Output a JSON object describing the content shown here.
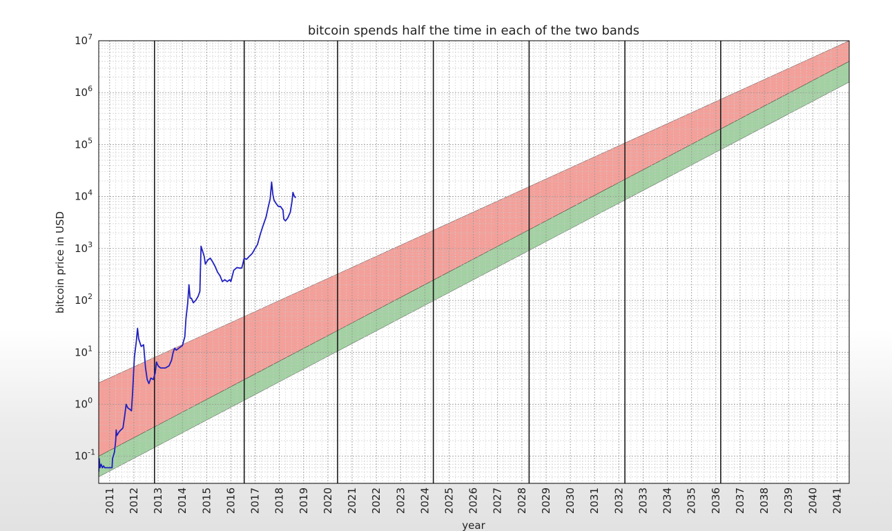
{
  "chart_data": {
    "type": "line",
    "title": "bitcoin spends half the time in each of the two bands",
    "xlabel": "year",
    "ylabel": "bitcoin price in USD",
    "yscale": "log",
    "ylim": [
      0.03,
      10000000
    ],
    "xlim": [
      2010.55,
      2041.5
    ],
    "grid": true,
    "y_ticks": [
      {
        "value": 0.1,
        "base": "10",
        "exp": "-1"
      },
      {
        "value": 1,
        "base": "10",
        "exp": "0"
      },
      {
        "value": 10,
        "base": "10",
        "exp": "1"
      },
      {
        "value": 100,
        "base": "10",
        "exp": "2"
      },
      {
        "value": 1000,
        "base": "10",
        "exp": "3"
      },
      {
        "value": 10000,
        "base": "10",
        "exp": "4"
      },
      {
        "value": 100000,
        "base": "10",
        "exp": "5"
      },
      {
        "value": 1000000,
        "base": "10",
        "exp": "6"
      },
      {
        "value": 10000000,
        "base": "10",
        "exp": "7"
      }
    ],
    "x_ticks": [
      {
        "label": "2011",
        "x": 2011.0
      },
      {
        "label": "2012",
        "x": 2012.0
      },
      {
        "label": "2013",
        "x": 2013.0
      },
      {
        "label": "2014",
        "x": 2014.0
      },
      {
        "label": "2015",
        "x": 2015.0
      },
      {
        "label": "2016",
        "x": 2016.0
      },
      {
        "label": "2017",
        "x": 2017.0
      },
      {
        "label": "2018",
        "x": 2018.0
      },
      {
        "label": "2019",
        "x": 2019.0
      },
      {
        "label": "2020",
        "x": 2020.0
      },
      {
        "label": "2021",
        "x": 2021.0
      },
      {
        "label": "2022",
        "x": 2022.0
      },
      {
        "label": "2023",
        "x": 2023.0
      },
      {
        "label": "2024",
        "x": 2024.0
      },
      {
        "label": "2025",
        "x": 2025.0
      },
      {
        "label": "2026",
        "x": 2026.0
      },
      {
        "label": "2027",
        "x": 2027.0
      },
      {
        "label": "2028",
        "x": 2028.0
      },
      {
        "label": "2029",
        "x": 2029.0
      },
      {
        "label": "2030",
        "x": 2030.0
      },
      {
        "label": "2031",
        "x": 2031.0
      },
      {
        "label": "2032",
        "x": 2032.0
      },
      {
        "label": "2033",
        "x": 2033.0
      },
      {
        "label": "2034",
        "x": 2034.0
      },
      {
        "label": "2035",
        "x": 2035.0
      },
      {
        "label": "2036",
        "x": 2036.0
      },
      {
        "label": "2037",
        "x": 2037.0
      },
      {
        "label": "2038",
        "x": 2038.0
      },
      {
        "label": "2039",
        "x": 2039.0
      },
      {
        "label": "2040",
        "x": 2040.0
      },
      {
        "label": "2041",
        "x": 2041.0
      }
    ],
    "vertical_lines_x": [
      2012.85,
      2016.55,
      2020.4,
      2024.35,
      2028.3,
      2032.25,
      2036.2
    ],
    "bands": [
      {
        "color": "#f4a09a",
        "lower": [
          [
            2010.55,
            0.1
          ],
          [
            2041.5,
            4000000
          ]
        ],
        "upper": [
          [
            2010.55,
            2.6
          ],
          [
            2041.5,
            10000000
          ]
        ]
      },
      {
        "color": "#a3d1a3",
        "lower": [
          [
            2010.55,
            0.04
          ],
          [
            2041.5,
            1600000
          ]
        ],
        "upper": [
          [
            2010.55,
            0.1
          ],
          [
            2041.5,
            4000000
          ]
        ]
      }
    ],
    "series": [
      {
        "color": "#1f1fbf",
        "points": [
          [
            2010.55,
            0.05
          ],
          [
            2010.57,
            0.09
          ],
          [
            2010.6,
            0.06
          ],
          [
            2010.65,
            0.07
          ],
          [
            2010.7,
            0.06
          ],
          [
            2010.75,
            0.065
          ],
          [
            2010.8,
            0.06
          ],
          [
            2010.9,
            0.06
          ],
          [
            2011.0,
            0.06
          ],
          [
            2011.1,
            0.06
          ],
          [
            2011.12,
            0.09
          ],
          [
            2011.2,
            0.12
          ],
          [
            2011.25,
            0.2
          ],
          [
            2011.27,
            0.32
          ],
          [
            2011.3,
            0.25
          ],
          [
            2011.4,
            0.3
          ],
          [
            2011.55,
            0.35
          ],
          [
            2011.62,
            0.6
          ],
          [
            2011.68,
            1.0
          ],
          [
            2011.75,
            0.85
          ],
          [
            2011.83,
            0.8
          ],
          [
            2011.9,
            0.75
          ],
          [
            2011.95,
            1.8
          ],
          [
            2012.02,
            8.0
          ],
          [
            2012.1,
            16.0
          ],
          [
            2012.15,
            29.0
          ],
          [
            2012.2,
            18.0
          ],
          [
            2012.3,
            13.0
          ],
          [
            2012.4,
            14.0
          ],
          [
            2012.48,
            5.0
          ],
          [
            2012.55,
            3.0
          ],
          [
            2012.62,
            2.5
          ],
          [
            2012.7,
            3.2
          ],
          [
            2012.8,
            3.0
          ],
          [
            2012.88,
            4.0
          ],
          [
            2012.93,
            6.5
          ],
          [
            2013.0,
            5.5
          ],
          [
            2013.1,
            5.0
          ],
          [
            2013.3,
            5.0
          ],
          [
            2013.45,
            5.5
          ],
          [
            2013.55,
            7.0
          ],
          [
            2013.62,
            10.0
          ],
          [
            2013.68,
            12.0
          ],
          [
            2013.75,
            11.0
          ],
          [
            2013.85,
            12.0
          ],
          [
            2013.95,
            13.0
          ],
          [
            2014.0,
            13.5
          ],
          [
            2014.1,
            20.0
          ],
          [
            2014.15,
            45.0
          ],
          [
            2014.22,
            90.0
          ],
          [
            2014.27,
            200.0
          ],
          [
            2014.32,
            110.0
          ],
          [
            2014.37,
            110.0
          ],
          [
            2014.45,
            90.0
          ],
          [
            2014.55,
            100.0
          ],
          [
            2014.65,
            120.0
          ],
          [
            2014.72,
            150.0
          ],
          [
            2014.77,
            1100.0
          ],
          [
            2014.83,
            900.0
          ],
          [
            2014.9,
            700.0
          ],
          [
            2014.95,
            500.0
          ],
          [
            2015.05,
            600.0
          ],
          [
            2015.15,
            650.0
          ],
          [
            2015.25,
            550.0
          ],
          [
            2015.35,
            450.0
          ],
          [
            2015.45,
            350.0
          ],
          [
            2015.55,
            300.0
          ],
          [
            2015.65,
            230.0
          ],
          [
            2015.75,
            250.0
          ],
          [
            2015.85,
            230.0
          ],
          [
            2015.95,
            250.0
          ],
          [
            2016.0,
            230.0
          ],
          [
            2016.12,
            380.0
          ],
          [
            2016.25,
            430.0
          ],
          [
            2016.35,
            420.0
          ],
          [
            2016.45,
            420.0
          ],
          [
            2016.55,
            650.0
          ],
          [
            2016.65,
            620.0
          ],
          [
            2016.75,
            700.0
          ],
          [
            2016.88,
            800.0
          ],
          [
            2017.0,
            1000.0
          ],
          [
            2017.1,
            1200.0
          ],
          [
            2017.2,
            1800.0
          ],
          [
            2017.32,
            2700.0
          ],
          [
            2017.45,
            4000.0
          ],
          [
            2017.55,
            6500.0
          ],
          [
            2017.62,
            9000.0
          ],
          [
            2017.68,
            19000.0
          ],
          [
            2017.73,
            11000.0
          ],
          [
            2017.78,
            8500.0
          ],
          [
            2017.85,
            7500.0
          ],
          [
            2017.95,
            6500.0
          ],
          [
            2018.05,
            6400.0
          ],
          [
            2018.15,
            5500.0
          ],
          [
            2018.18,
            3700.0
          ],
          [
            2018.25,
            3400.0
          ],
          [
            2018.35,
            3900.0
          ],
          [
            2018.45,
            5000.0
          ],
          [
            2018.52,
            8000.0
          ],
          [
            2018.56,
            12000.0
          ],
          [
            2018.62,
            10000.0
          ],
          [
            2018.68,
            9500.0
          ]
        ]
      }
    ]
  }
}
